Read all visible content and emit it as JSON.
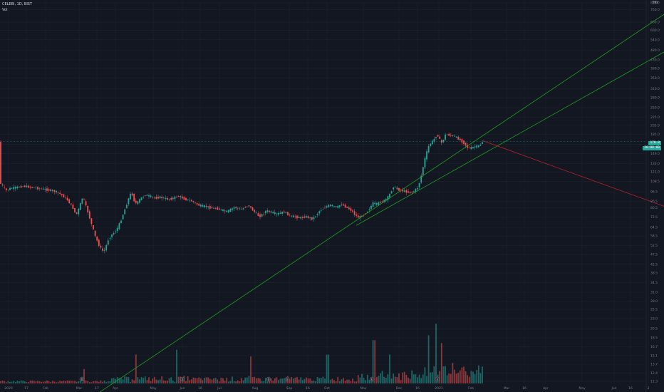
{
  "header": {
    "symbol_line": "CELEBI, 1D, BIST",
    "volume_label": "Vol",
    "currency": "TRY"
  },
  "colors": {
    "background": "#131722",
    "up": "#26a69a",
    "down": "#ef5350",
    "trendline_green": "#1b9e1b",
    "trendline_red": "#b2202a",
    "grid": "#1e222d",
    "text": "#787b86"
  },
  "price_badges": [
    "170.8",
    "20:00:00"
  ],
  "chart_data": {
    "type": "candlestick",
    "scale": "log",
    "y_ticks": [
      "820.0",
      "760.0",
      "660.0",
      "600.0",
      "540.0",
      "480.0",
      "430.0",
      "390.0",
      "350.0",
      "310.0",
      "280.0",
      "250.0",
      "225.0",
      "205.0",
      "185.0",
      "165.0",
      "149.0",
      "133.0",
      "121.0",
      "108.5",
      "96.5",
      "86.5",
      "80.5",
      "72.5",
      "64.5",
      "58.5",
      "52.5",
      "47.5",
      "42.5",
      "38.5",
      "34.5",
      "31.0",
      "28.0",
      "25.5",
      "23.0",
      "20.5",
      "18.5",
      "16.7",
      "15.1",
      "13.7",
      "12.4",
      "11.3"
    ],
    "x_ticks": [
      "2020",
      "17",
      "Feb",
      "Mar",
      "17",
      "Apr",
      "May",
      "Jun",
      "16",
      "Jul",
      "Aug",
      "Sep",
      "16",
      "Oct",
      "Nov",
      "Dec",
      "16",
      "2021",
      "Feb",
      "Mar",
      "16",
      "Apr",
      "May",
      "Jun",
      "16",
      "2"
    ],
    "price_path": [
      [
        0,
        108
      ],
      [
        5,
        103
      ],
      [
        10,
        98
      ],
      [
        15,
        100
      ],
      [
        20,
        101
      ],
      [
        28,
        102
      ],
      [
        35,
        103
      ],
      [
        42,
        102
      ],
      [
        50,
        101
      ],
      [
        58,
        100
      ],
      [
        66,
        99
      ],
      [
        74,
        98
      ],
      [
        82,
        96
      ],
      [
        90,
        92
      ],
      [
        96,
        88
      ],
      [
        100,
        84
      ],
      [
        104,
        80
      ],
      [
        108,
        74
      ],
      [
        112,
        80
      ],
      [
        116,
        88
      ],
      [
        118,
        93
      ],
      [
        120,
        85
      ],
      [
        123,
        80
      ],
      [
        126,
        74
      ],
      [
        129,
        68
      ],
      [
        132,
        63
      ],
      [
        135,
        58
      ],
      [
        138,
        55
      ],
      [
        141,
        52
      ],
      [
        144,
        50
      ],
      [
        147,
        49
      ],
      [
        150,
        52
      ],
      [
        153,
        56
      ],
      [
        156,
        58
      ],
      [
        159,
        60
      ],
      [
        162,
        61
      ],
      [
        165,
        63
      ],
      [
        168,
        66
      ],
      [
        171,
        70
      ],
      [
        174,
        75
      ],
      [
        177,
        80
      ],
      [
        180,
        86
      ],
      [
        183,
        92
      ],
      [
        186,
        96
      ],
      [
        189,
        88
      ],
      [
        192,
        85
      ],
      [
        195,
        86
      ],
      [
        198,
        89
      ],
      [
        201,
        91
      ],
      [
        205,
        93
      ],
      [
        210,
        92
      ],
      [
        215,
        91
      ],
      [
        220,
        90
      ],
      [
        225,
        91
      ],
      [
        230,
        90
      ],
      [
        235,
        89
      ],
      [
        240,
        89
      ],
      [
        245,
        90
      ],
      [
        250,
        92
      ],
      [
        255,
        91
      ],
      [
        260,
        89
      ],
      [
        265,
        88
      ],
      [
        270,
        87
      ],
      [
        275,
        85
      ],
      [
        280,
        83
      ],
      [
        285,
        82
      ],
      [
        290,
        82
      ],
      [
        295,
        81
      ],
      [
        300,
        80
      ],
      [
        305,
        80
      ],
      [
        310,
        79
      ],
      [
        315,
        78
      ],
      [
        320,
        77
      ],
      [
        325,
        79
      ],
      [
        330,
        81
      ],
      [
        335,
        80
      ],
      [
        340,
        79
      ],
      [
        345,
        81
      ],
      [
        350,
        83
      ],
      [
        355,
        79
      ],
      [
        360,
        76
      ],
      [
        365,
        73
      ],
      [
        370,
        75
      ],
      [
        375,
        78
      ],
      [
        380,
        77
      ],
      [
        385,
        76
      ],
      [
        390,
        75
      ],
      [
        395,
        76
      ],
      [
        400,
        77
      ],
      [
        405,
        75
      ],
      [
        410,
        73
      ],
      [
        415,
        73
      ],
      [
        420,
        72
      ],
      [
        425,
        72
      ],
      [
        430,
        73
      ],
      [
        435,
        72
      ],
      [
        440,
        71
      ],
      [
        445,
        74
      ],
      [
        450,
        78
      ],
      [
        455,
        80
      ],
      [
        460,
        82
      ],
      [
        465,
        83
      ],
      [
        470,
        82
      ],
      [
        475,
        81
      ],
      [
        480,
        84
      ],
      [
        485,
        82
      ],
      [
        490,
        80
      ],
      [
        495,
        78
      ],
      [
        500,
        74
      ],
      [
        505,
        72
      ],
      [
        510,
        74
      ],
      [
        515,
        76
      ],
      [
        520,
        80
      ],
      [
        525,
        85
      ],
      [
        530,
        84
      ],
      [
        535,
        86
      ],
      [
        540,
        87
      ],
      [
        545,
        90
      ],
      [
        550,
        96
      ],
      [
        553,
        103
      ],
      [
        556,
        101
      ],
      [
        560,
        99
      ],
      [
        565,
        98
      ],
      [
        570,
        97
      ],
      [
        575,
        96
      ],
      [
        580,
        96
      ],
      [
        585,
        99
      ],
      [
        588,
        102
      ],
      [
        591,
        110
      ],
      [
        594,
        122
      ],
      [
        597,
        138
      ],
      [
        600,
        150
      ],
      [
        603,
        162
      ],
      [
        606,
        168
      ],
      [
        609,
        172
      ],
      [
        612,
        178
      ],
      [
        615,
        186
      ],
      [
        618,
        175
      ],
      [
        621,
        168
      ],
      [
        624,
        176
      ],
      [
        627,
        186
      ],
      [
        630,
        184
      ],
      [
        633,
        183
      ],
      [
        636,
        182
      ],
      [
        639,
        181
      ],
      [
        642,
        178
      ],
      [
        645,
        176
      ],
      [
        648,
        172
      ],
      [
        651,
        170
      ],
      [
        654,
        165
      ],
      [
        657,
        160
      ],
      [
        660,
        158
      ],
      [
        663,
        159
      ],
      [
        666,
        160
      ],
      [
        669,
        162
      ],
      [
        672,
        161
      ],
      [
        675,
        164
      ],
      [
        678,
        170
      ]
    ],
    "trendlines": [
      {
        "color": "green",
        "from": [
          110,
          8.5
        ],
        "to": [
          932,
          720
        ]
      },
      {
        "color": "green",
        "from": [
          500,
          66
        ],
        "to": [
          932,
          470
        ]
      },
      {
        "color": "red",
        "from": [
          678,
          172
        ],
        "to": [
          932,
          82
        ]
      }
    ],
    "volume": {
      "max_label": "",
      "spikes": [
        [
          118,
          0.15
        ],
        [
          190,
          0.3
        ],
        [
          248,
          0.35
        ],
        [
          353,
          0.28
        ],
        [
          460,
          0.3
        ],
        [
          523,
          1.0
        ],
        [
          525,
          0.45
        ],
        [
          548,
          0.3
        ],
        [
          602,
          0.5
        ],
        [
          612,
          0.62
        ],
        [
          620,
          0.42
        ]
      ]
    },
    "event_markers": [
      {
        "x": 115,
        "label": "D"
      },
      {
        "x": 256,
        "label": "D"
      },
      {
        "x": 377,
        "label": "D"
      },
      {
        "x": 403,
        "label": "S"
      },
      {
        "x": 522,
        "label": "E"
      },
      {
        "x": 614,
        "label": "E"
      }
    ]
  }
}
